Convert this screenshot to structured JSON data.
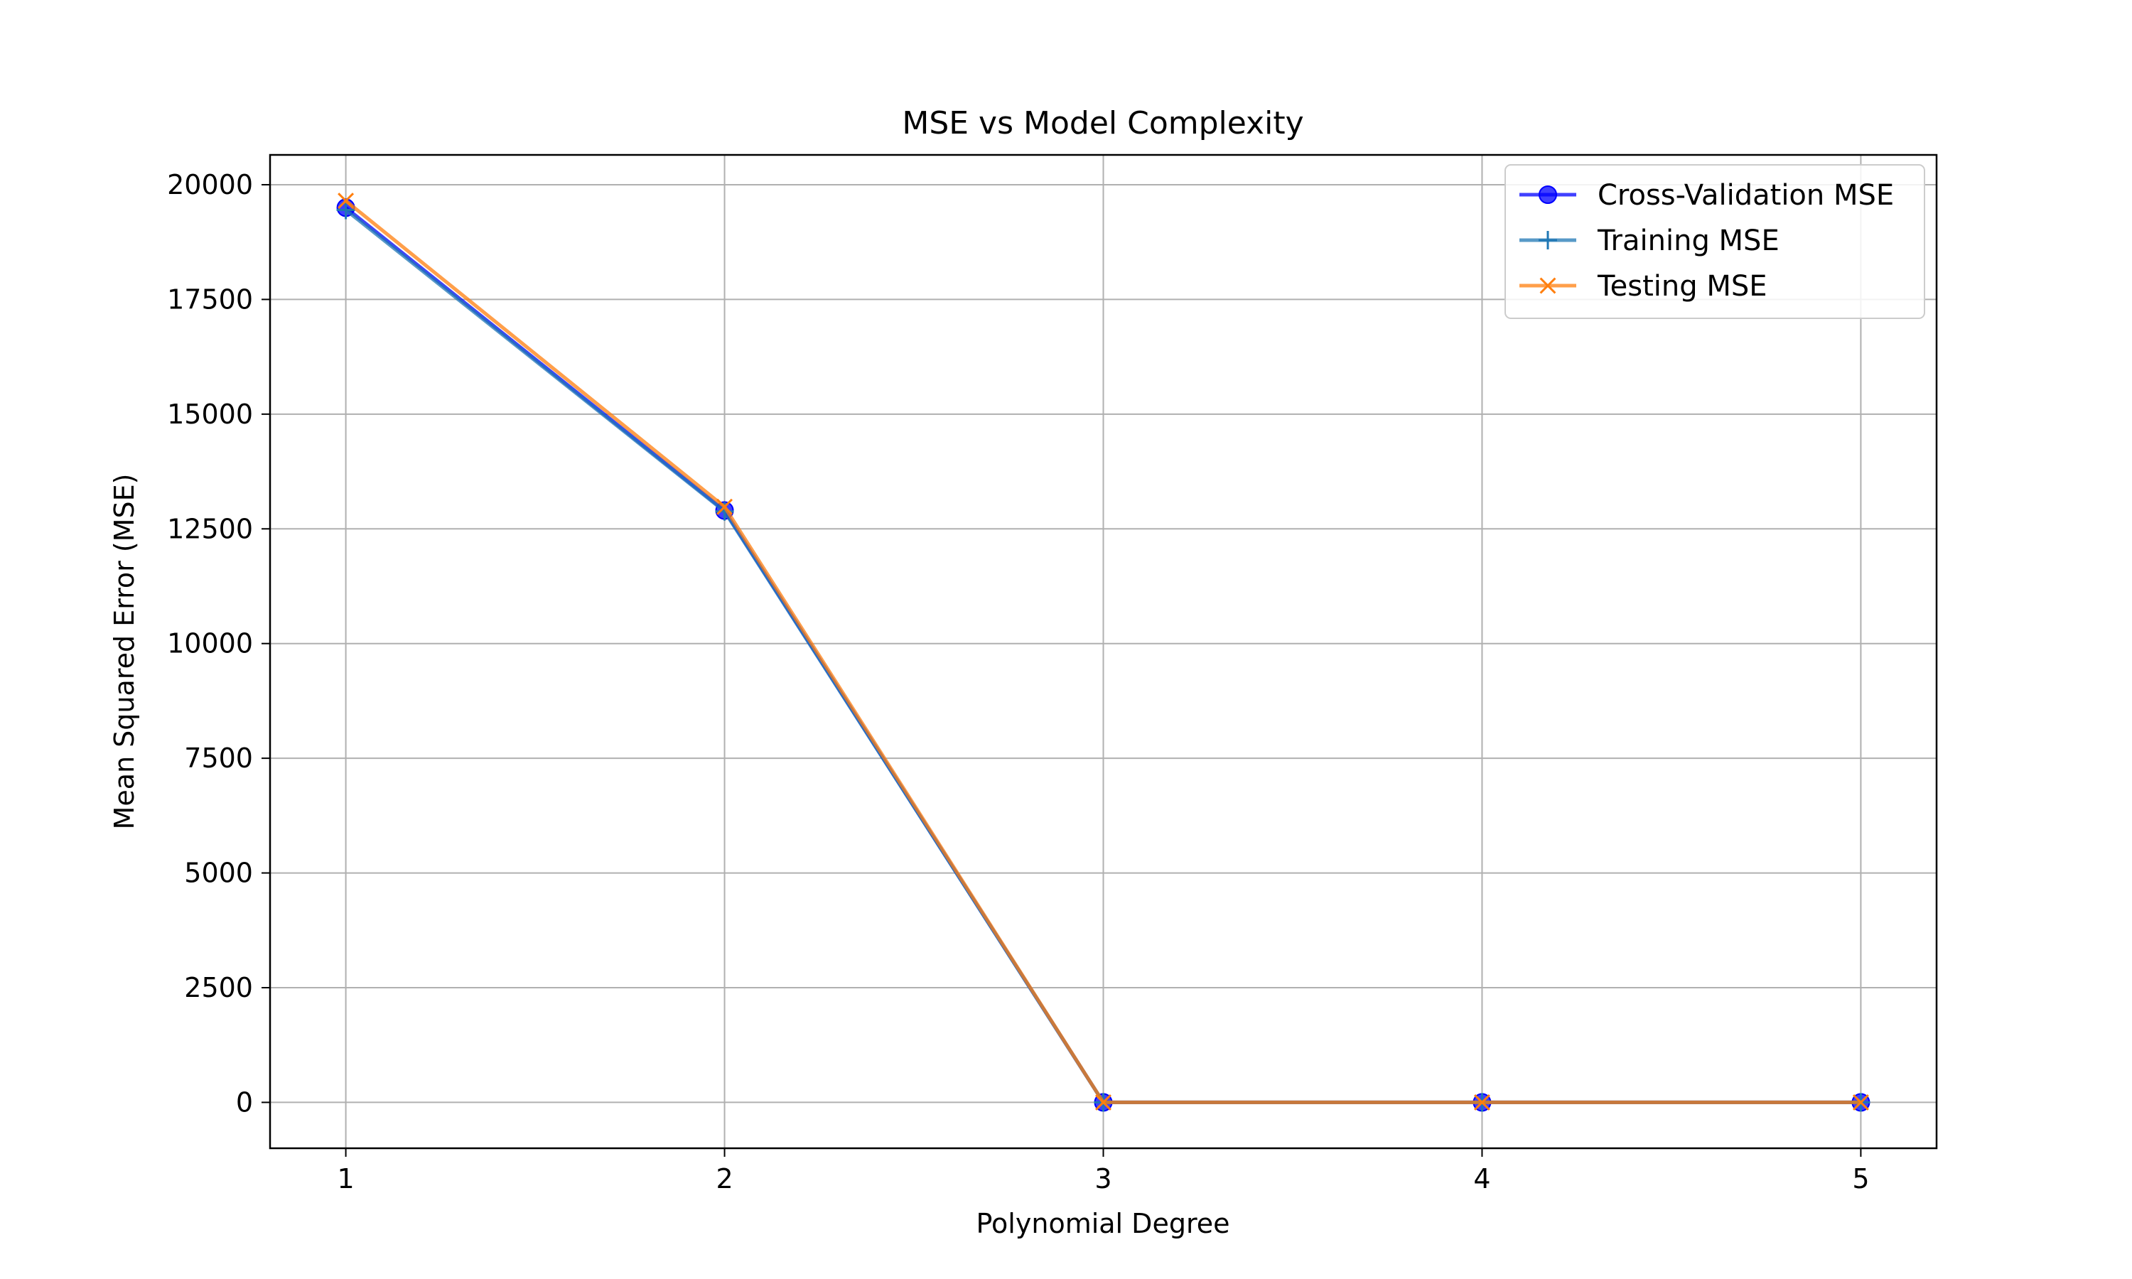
{
  "chart_data": {
    "type": "line",
    "title": "MSE vs Model Complexity",
    "xlabel": "Polynomial Degree",
    "ylabel": "Mean Squared Error (MSE)",
    "x": [
      1,
      2,
      3,
      4,
      5
    ],
    "xlim": [
      0.8,
      5.2
    ],
    "ylim": [
      -1000,
      20650
    ],
    "xticks": [
      "1",
      "2",
      "3",
      "4",
      "5"
    ],
    "yticks": [
      "0",
      "2500",
      "5000",
      "7500",
      "10000",
      "12500",
      "15000",
      "17500",
      "20000"
    ],
    "grid": true,
    "legend_position": "top-right",
    "series": [
      {
        "name": "Cross-Validation MSE",
        "values": [
          19500,
          12900,
          0,
          0,
          0
        ],
        "color": "#0000ff",
        "marker": "circle"
      },
      {
        "name": "Training MSE",
        "values": [
          19450,
          12880,
          0,
          0,
          0
        ],
        "color": "#1f77b4",
        "marker": "plus"
      },
      {
        "name": "Testing MSE",
        "values": [
          19650,
          12980,
          0,
          0,
          0
        ],
        "color": "#ff7f0e",
        "marker": "x"
      }
    ]
  }
}
